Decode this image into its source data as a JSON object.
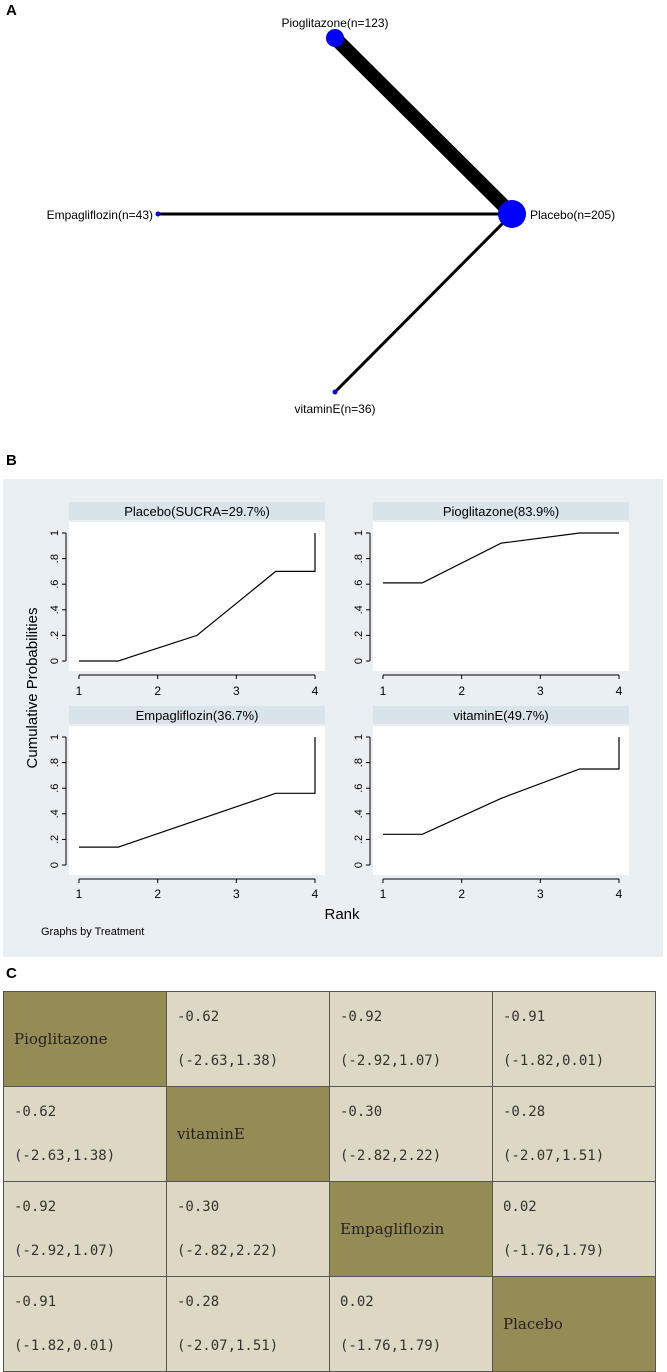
{
  "panels": {
    "a": "A",
    "b": "B",
    "c": "C"
  },
  "network": {
    "nodes": [
      {
        "label": "Pioglitazone(n=123)",
        "n": 123
      },
      {
        "label": "Empagliflozin(n=43)",
        "n": 43
      },
      {
        "label": "Placebo(n=205)",
        "n": 205
      },
      {
        "label": "vitaminE(n=36)",
        "n": 36
      }
    ],
    "edges": [
      {
        "from": "Pioglitazone",
        "to": "Placebo"
      },
      {
        "from": "Empagliflozin",
        "to": "Placebo"
      },
      {
        "from": "vitaminE",
        "to": "Placebo"
      }
    ]
  },
  "chart_data": {
    "type": "line",
    "ylabel": "Cumulative Probabilities",
    "xlabel": "Rank",
    "note": "Graphs by Treatment",
    "xlim": [
      1,
      4
    ],
    "ylim": [
      0,
      1
    ],
    "x_ticks": [
      "1",
      "2",
      "3",
      "4"
    ],
    "y_ticks": [
      "0",
      ".2",
      ".4",
      ".6",
      ".8",
      "1"
    ],
    "series": [
      {
        "name": "Placebo(SUCRA=29.7%)",
        "values": [
          0.0,
          0.2,
          0.7,
          1.0
        ]
      },
      {
        "name": "Pioglitazone(83.9%)",
        "values": [
          0.61,
          0.92,
          1.0,
          1.0
        ]
      },
      {
        "name": "Empagliflozin(36.7%)",
        "values": [
          0.14,
          0.35,
          0.56,
          1.0
        ]
      },
      {
        "name": "vitaminE(49.7%)",
        "values": [
          0.24,
          0.52,
          0.75,
          1.0
        ]
      }
    ]
  },
  "league_table": {
    "rows": [
      [
        {
          "diag": "Pioglitazone"
        },
        {
          "est": "-0.62",
          "ci": "(-2.63,1.38)"
        },
        {
          "est": "-0.92",
          "ci": "(-2.92,1.07)"
        },
        {
          "est": "-0.91",
          "ci": "(-1.82,0.01)"
        }
      ],
      [
        {
          "est": "-0.62",
          "ci": "(-2.63,1.38)"
        },
        {
          "diag": "vitaminE"
        },
        {
          "est": "-0.30",
          "ci": "(-2.82,2.22)"
        },
        {
          "est": "-0.28",
          "ci": "(-2.07,1.51)"
        }
      ],
      [
        {
          "est": "-0.92",
          "ci": "(-2.92,1.07)"
        },
        {
          "est": "-0.30",
          "ci": "(-2.82,2.22)"
        },
        {
          "diag": "Empagliflozin"
        },
        {
          "est": "0.02",
          "ci": "(-1.76,1.79)"
        }
      ],
      [
        {
          "est": "-0.91",
          "ci": "(-1.82,0.01)"
        },
        {
          "est": "-0.28",
          "ci": "(-2.07,1.51)"
        },
        {
          "est": "0.02",
          "ci": "(-1.76,1.79)"
        },
        {
          "diag": "Placebo"
        }
      ]
    ]
  },
  "colors": {
    "node": "#0000ff",
    "panel_bg": "#e9eff3",
    "strip_bg": "#d9e4ea",
    "diag_cell": "#958b55",
    "cell": "#ddd8c4"
  }
}
